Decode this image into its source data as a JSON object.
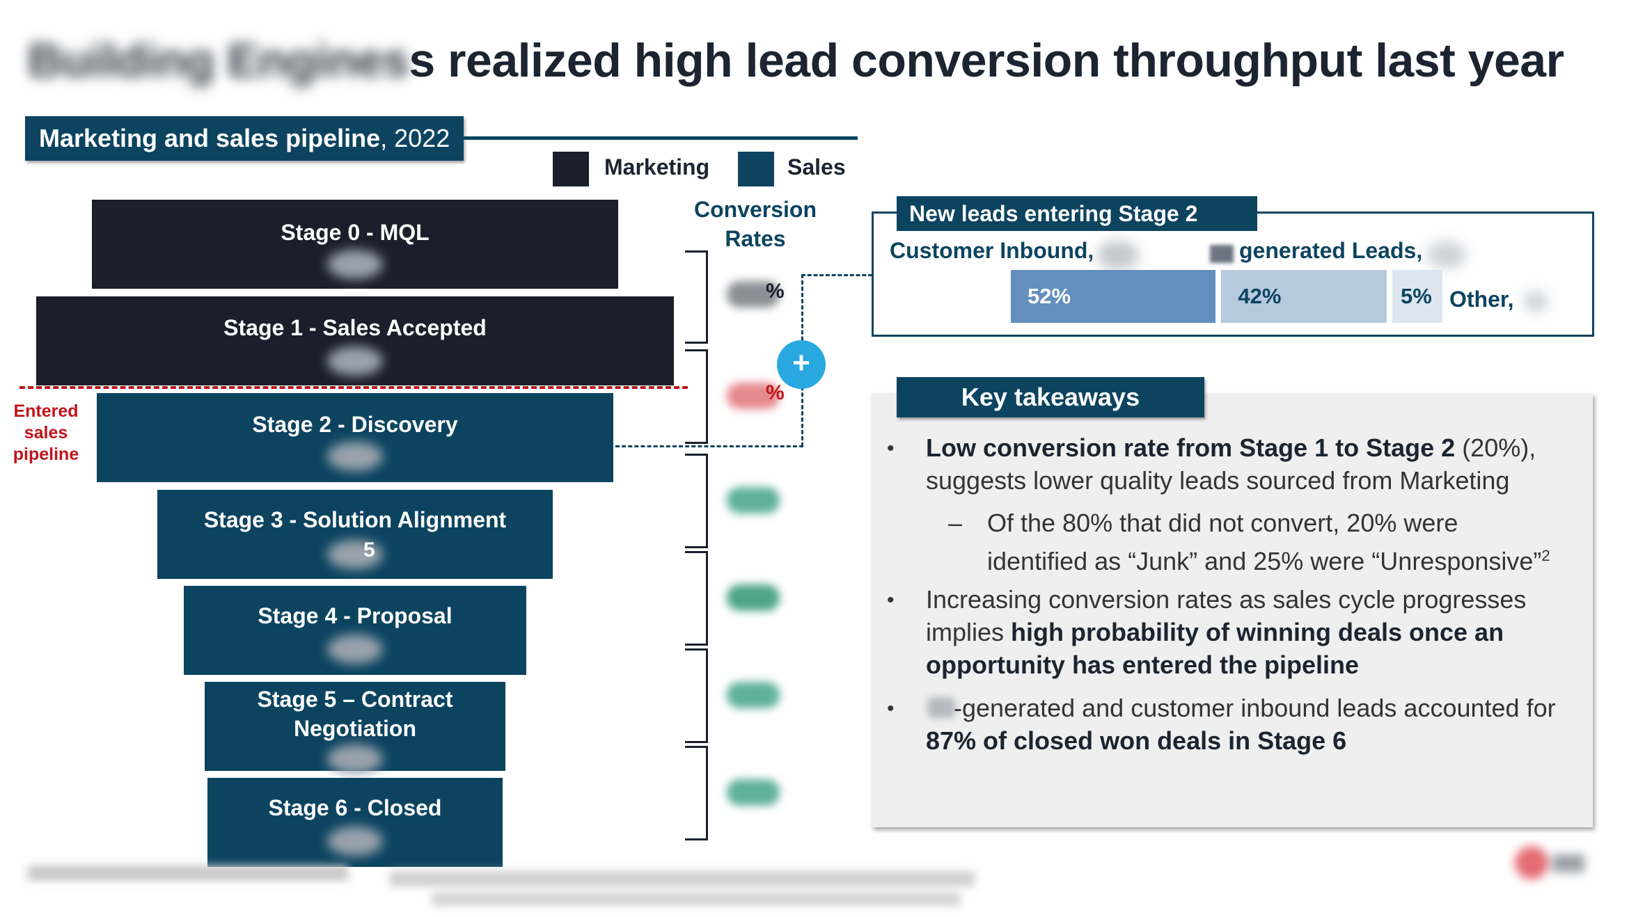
{
  "title": {
    "hidden_part": "Building Engines",
    "visible_part": "s realized high lead conversion throughput last year"
  },
  "pipeline_header": {
    "bold": "Marketing and sales pipeline",
    "year": ", 2022"
  },
  "legend": {
    "marketing": "Marketing",
    "sales": "Sales",
    "marketing_color": "#1a1f2b",
    "sales_color": "#0c4460"
  },
  "conversion_header": [
    "Conversion",
    "Rates"
  ],
  "stages": [
    {
      "label": "Stage 0 - MQL",
      "kind": "marketing"
    },
    {
      "label": "Stage 1 - Sales Accepted",
      "kind": "marketing"
    },
    {
      "label": "Stage 2 - Discovery",
      "kind": "sales"
    },
    {
      "label": "Stage 3 - Solution Alignment",
      "kind": "sales",
      "value_tail": "5"
    },
    {
      "label": "Stage 4 - Proposal",
      "kind": "sales"
    },
    {
      "label": "Stage 5 – Contract Negotiation",
      "kind": "sales"
    },
    {
      "label": "Stage 6 - Closed",
      "kind": "sales"
    }
  ],
  "conversion_rates": [
    {
      "suffix": "%",
      "color": "#1a1f2b"
    },
    {
      "suffix": "%",
      "color": "#c0141b"
    },
    {
      "suffix": "",
      "color": "#2d8a6e"
    },
    {
      "suffix": "",
      "color": "#2d8a6e"
    },
    {
      "suffix": "",
      "color": "#2d8a6e"
    },
    {
      "suffix": "",
      "color": "#2d8a6e"
    }
  ],
  "entered_label": [
    "Entered",
    "sales",
    "pipeline"
  ],
  "plus_icon": "+",
  "new_leads": {
    "title": "New leads entering Stage 2",
    "customer_inbound": "Customer Inbound,",
    "generated_leads": "generated Leads,",
    "other": "Other,",
    "bars": [
      {
        "pct": "52%",
        "value": 52,
        "color": "#628fbd"
      },
      {
        "pct": "42%",
        "value": 42,
        "color": "#b6c9dd"
      },
      {
        "pct": "5%",
        "value": 5,
        "color": "#dde6ef"
      }
    ]
  },
  "takeaways": {
    "title": "Key takeaways",
    "b1_bold": "Low conversion rate from Stage 1 to Stage 2",
    "b1_rest": " (20%),",
    "b1_line2": "suggests lower quality leads sourced from Marketing",
    "sub_line1": "Of the 80% that did not convert, 20% were",
    "sub_line2": "identified as “Junk” and 25% were “Unresponsive”",
    "sub_sup": "2",
    "b2_line1": "Increasing conversion rates as sales cycle progresses",
    "b2_pre": "implies ",
    "b2_bold1": "high probability of winning deals once an",
    "b2_bold2": "opportunity has entered the pipeline",
    "b3_line1": "-generated and customer inbound leads accounted for",
    "b3_bold": "87% of closed won deals in Stage 6",
    "bullet": "•",
    "dash": "–"
  }
}
